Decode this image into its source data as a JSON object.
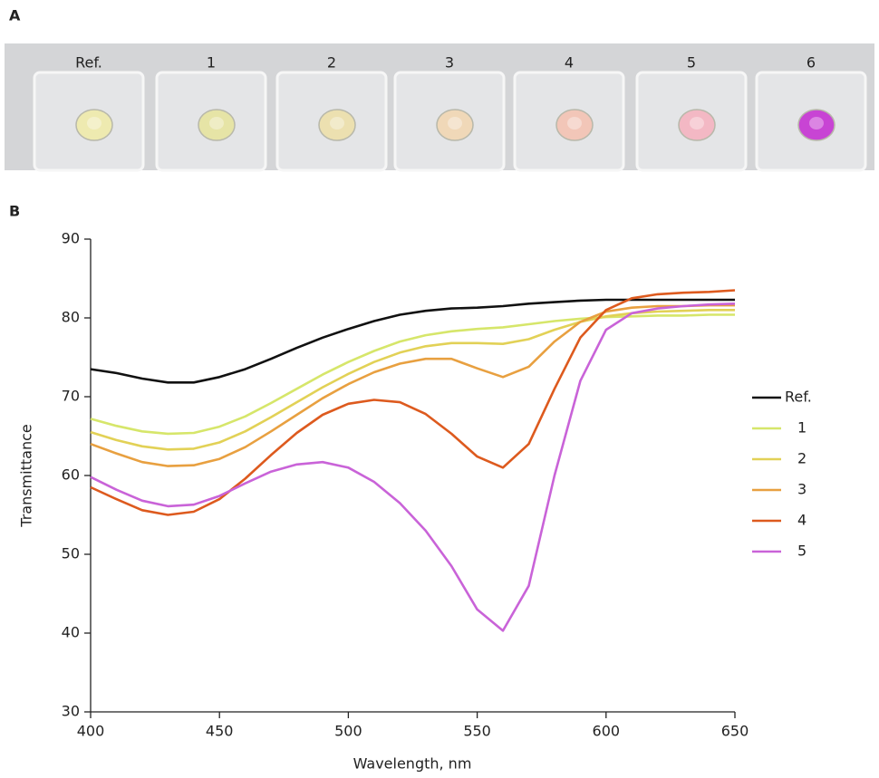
{
  "panel_a": {
    "label": "A",
    "photo_labels": [
      "Ref.",
      "1",
      "2",
      "3",
      "4",
      "5",
      "6"
    ]
  },
  "panel_b": {
    "label": "B"
  },
  "chart_data": {
    "type": "line",
    "x_label": "Wavelength, nm",
    "y_label": "Transmittance",
    "x": [
      400,
      410,
      420,
      430,
      440,
      450,
      460,
      470,
      480,
      490,
      500,
      510,
      520,
      530,
      540,
      550,
      560,
      570,
      580,
      590,
      600,
      610,
      620,
      630,
      640,
      650
    ],
    "xlim": [
      400,
      650
    ],
    "xticks": [
      400,
      450,
      500,
      550,
      600,
      650
    ],
    "ylim": [
      30,
      90
    ],
    "yticks": [
      30,
      40,
      50,
      60,
      70,
      80,
      90
    ],
    "grid": false,
    "legend": "right",
    "series": [
      {
        "name": "Ref.",
        "color": "#111111",
        "values": [
          73.5,
          73,
          72.3,
          71.8,
          71.8,
          72.5,
          73.5,
          74.8,
          76.2,
          77.5,
          78.6,
          79.6,
          80.4,
          80.9,
          81.2,
          81.3,
          81.5,
          81.8,
          82,
          82.2,
          82.3,
          82.3,
          82.3,
          82.3,
          82.3,
          82.3
        ]
      },
      {
        "name": "1",
        "color": "#d6e66a",
        "values": [
          67.2,
          66.3,
          65.6,
          65.3,
          65.4,
          66.2,
          67.5,
          69.2,
          71,
          72.8,
          74.4,
          75.8,
          77,
          77.8,
          78.3,
          78.6,
          78.8,
          79.2,
          79.6,
          79.9,
          80.1,
          80.2,
          80.3,
          80.3,
          80.4,
          80.4
        ]
      },
      {
        "name": "2",
        "color": "#e2d156",
        "values": [
          65.5,
          64.5,
          63.7,
          63.3,
          63.4,
          64.2,
          65.6,
          67.4,
          69.3,
          71.2,
          72.9,
          74.4,
          75.6,
          76.4,
          76.8,
          76.8,
          76.7,
          77.3,
          78.5,
          79.5,
          80.2,
          80.6,
          80.8,
          80.9,
          81,
          81
        ]
      },
      {
        "name": "3",
        "color": "#e8a040",
        "values": [
          64,
          62.8,
          61.7,
          61.2,
          61.3,
          62.1,
          63.6,
          65.6,
          67.7,
          69.8,
          71.6,
          73.1,
          74.2,
          74.8,
          74.8,
          73.6,
          72.5,
          73.8,
          77,
          79.5,
          80.8,
          81.3,
          81.5,
          81.5,
          81.6,
          81.6
        ]
      },
      {
        "name": "4",
        "color": "#dd5a1e",
        "values": [
          58.5,
          57,
          55.6,
          55,
          55.4,
          57,
          59.6,
          62.6,
          65.4,
          67.7,
          69.1,
          69.6,
          69.3,
          67.8,
          65.3,
          62.4,
          61,
          64,
          71,
          77.5,
          81,
          82.5,
          83,
          83.2,
          83.3,
          83.5
        ]
      },
      {
        "name": "5",
        "color": "#c963d8",
        "values": [
          59.8,
          58.2,
          56.8,
          56.1,
          56.3,
          57.4,
          59,
          60.5,
          61.4,
          61.7,
          61,
          59.2,
          56.5,
          53,
          48.5,
          43,
          40.3,
          46,
          60,
          72,
          78.5,
          80.6,
          81.2,
          81.5,
          81.7,
          81.8
        ]
      }
    ]
  }
}
